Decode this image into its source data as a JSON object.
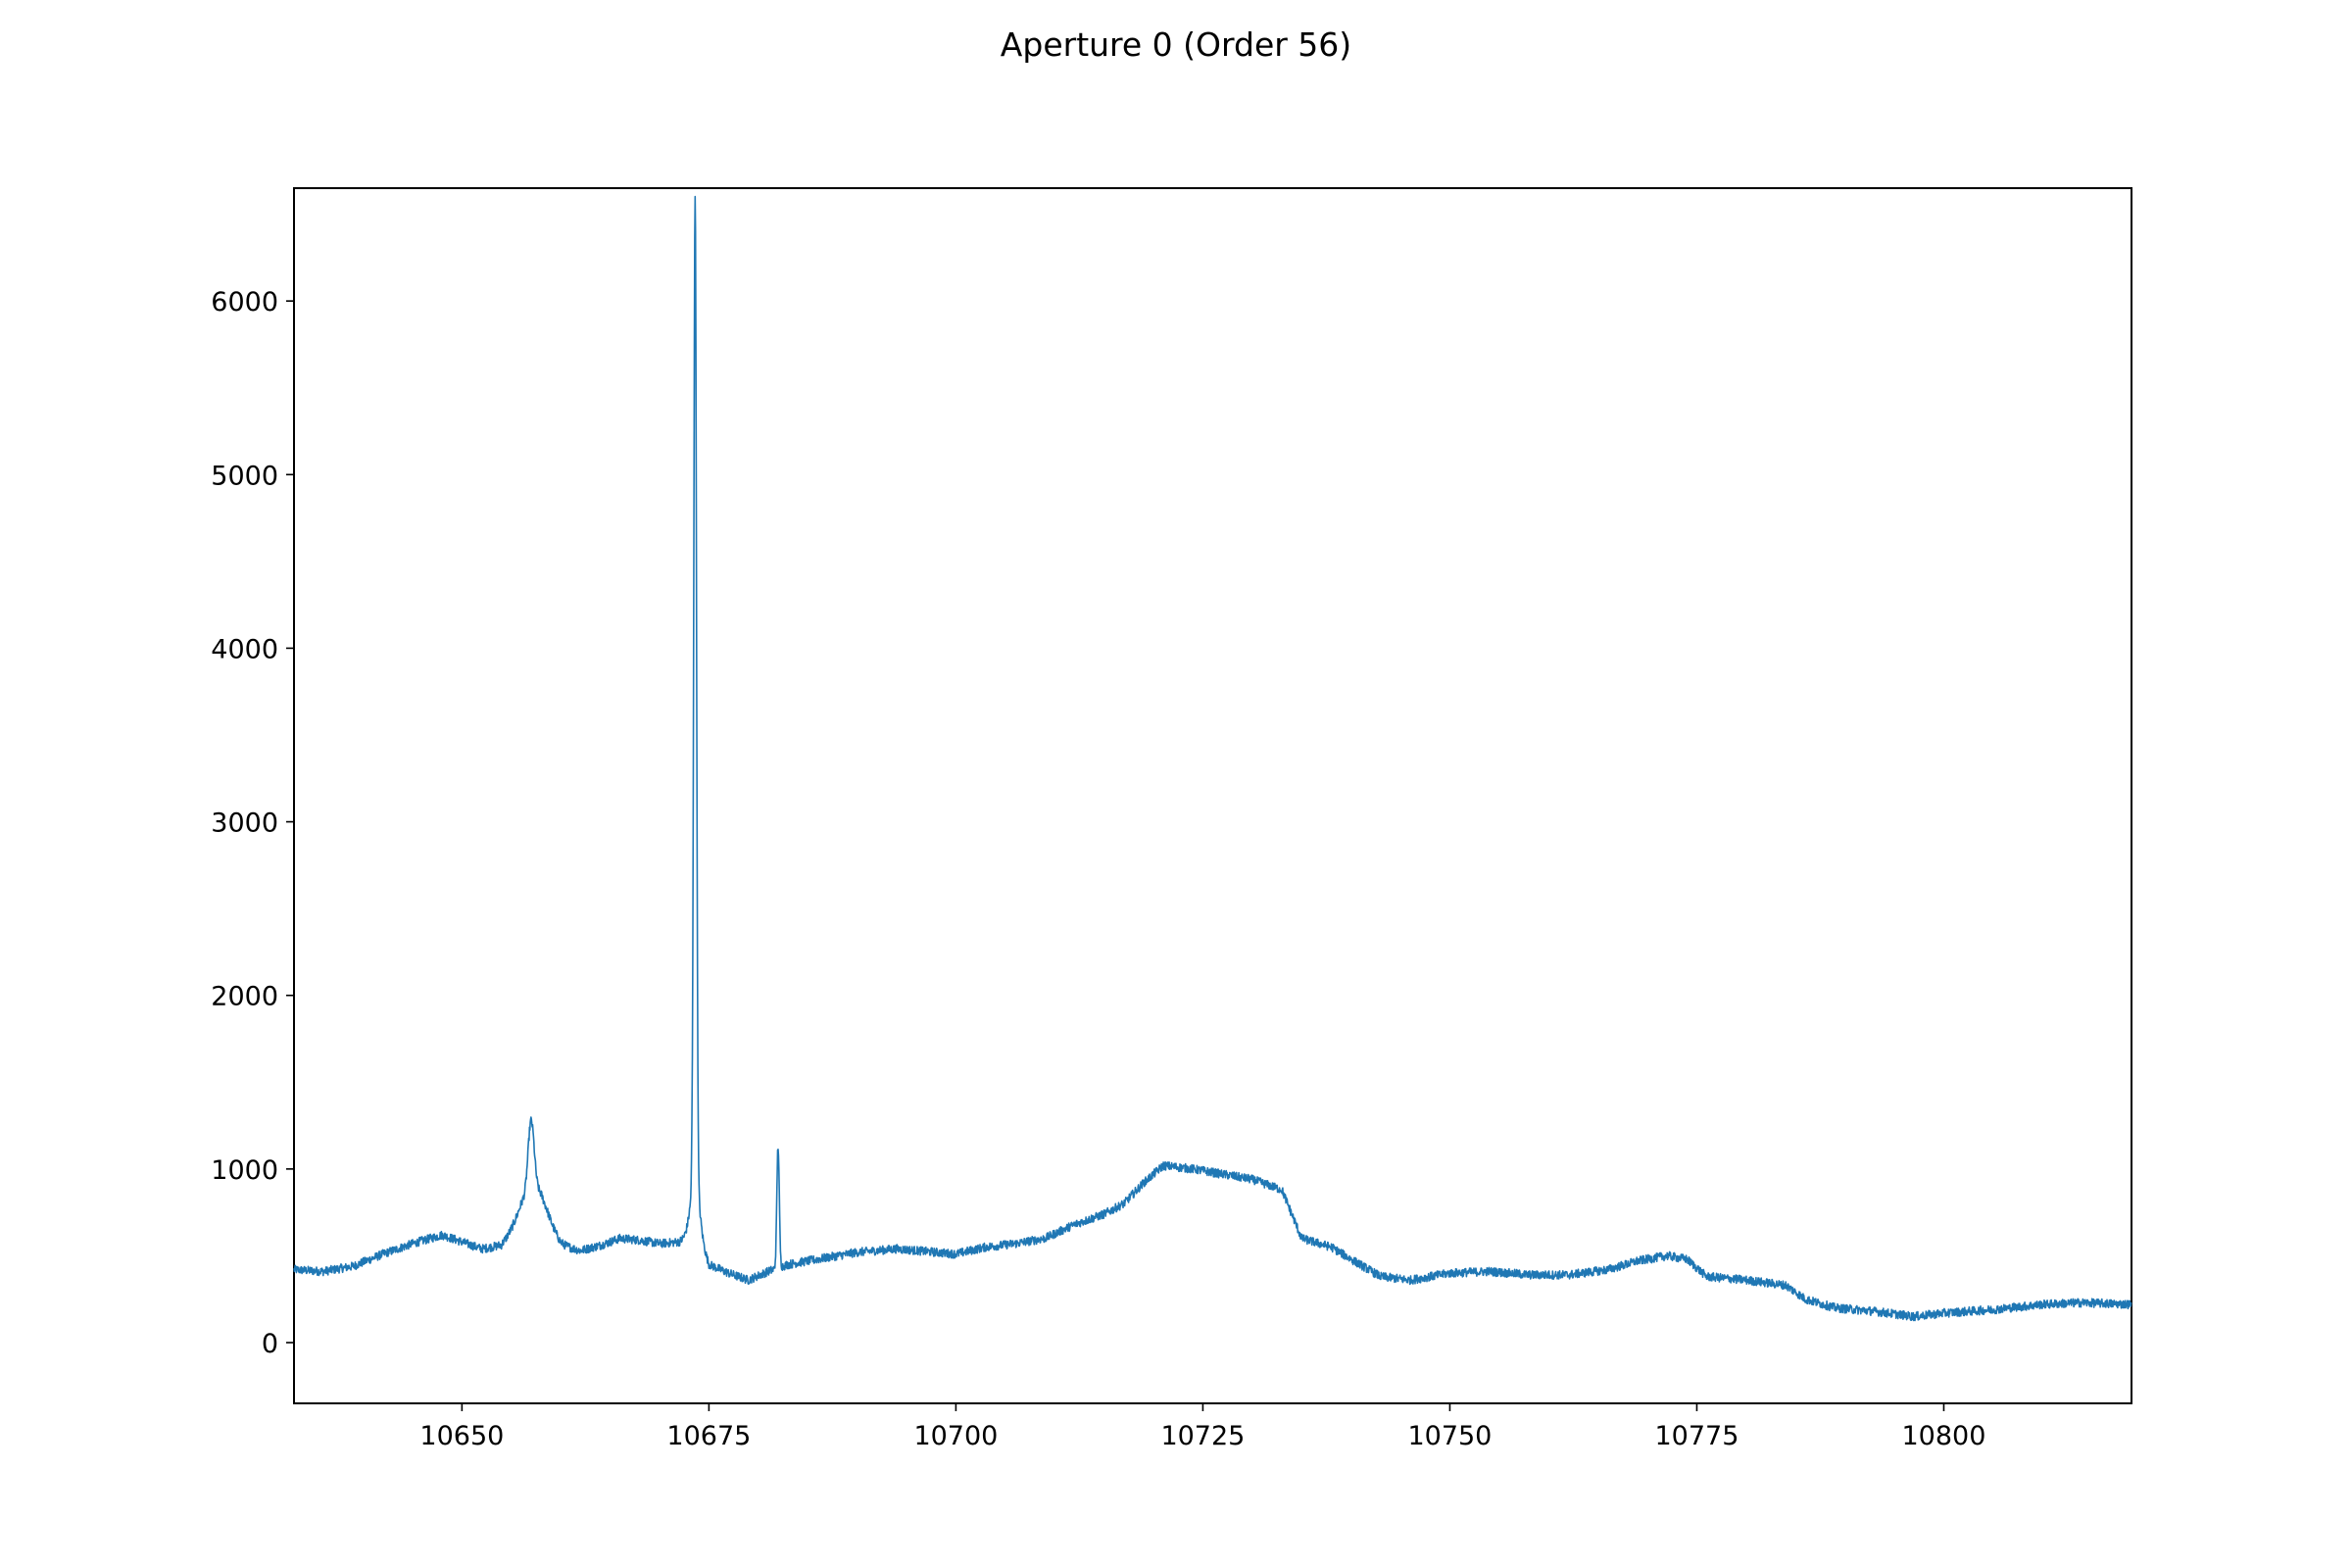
{
  "chart_data": {
    "type": "line",
    "title": "Aperture 0 (Order 56)",
    "xlabel": "",
    "ylabel": "",
    "xlim": [
      10633,
      10819
    ],
    "ylim": [
      -350,
      6650
    ],
    "grid": false,
    "x_ticks": [
      10650,
      10675,
      10700,
      10725,
      10750,
      10775,
      10800
    ],
    "x_tick_labels": [
      "10650",
      "10675",
      "10700",
      "10725",
      "10750",
      "10775",
      "10800"
    ],
    "y_ticks": [
      0,
      1000,
      2000,
      3000,
      4000,
      5000,
      6000
    ],
    "y_tick_labels": [
      "0",
      "1000",
      "2000",
      "3000",
      "4000",
      "5000",
      "6000"
    ],
    "series": [
      {
        "color": "#1f77b4",
        "continuum": [
          [
            10633,
            420
          ],
          [
            10636,
            410
          ],
          [
            10639,
            440
          ],
          [
            10642,
            510
          ],
          [
            10645,
            570
          ],
          [
            10648,
            620
          ],
          [
            10650,
            580
          ],
          [
            10652,
            540
          ],
          [
            10654,
            560
          ],
          [
            10656,
            700
          ],
          [
            10658,
            680
          ],
          [
            10660,
            560
          ],
          [
            10662,
            530
          ],
          [
            10664,
            560
          ],
          [
            10666,
            600
          ],
          [
            10668,
            590
          ],
          [
            10670,
            570
          ],
          [
            10672,
            580
          ],
          [
            10673,
            620
          ],
          [
            10674,
            600
          ],
          [
            10675,
            450
          ],
          [
            10677,
            400
          ],
          [
            10679,
            360
          ],
          [
            10681,
            410
          ],
          [
            10683,
            450
          ],
          [
            10686,
            480
          ],
          [
            10690,
            520
          ],
          [
            10694,
            540
          ],
          [
            10698,
            520
          ],
          [
            10700,
            510
          ],
          [
            10703,
            550
          ],
          [
            10706,
            570
          ],
          [
            10709,
            600
          ],
          [
            10712,
            680
          ],
          [
            10715,
            740
          ],
          [
            10717,
            800
          ],
          [
            10719,
            920
          ],
          [
            10721,
            1020
          ],
          [
            10724,
            1000
          ],
          [
            10727,
            970
          ],
          [
            10730,
            940
          ],
          [
            10733,
            880
          ],
          [
            10735,
            600
          ],
          [
            10738,
            550
          ],
          [
            10740,
            480
          ],
          [
            10743,
            380
          ],
          [
            10746,
            360
          ],
          [
            10750,
            400
          ],
          [
            10754,
            410
          ],
          [
            10758,
            390
          ],
          [
            10762,
            390
          ],
          [
            10766,
            420
          ],
          [
            10769,
            470
          ],
          [
            10772,
            500
          ],
          [
            10774,
            480
          ],
          [
            10776,
            380
          ],
          [
            10780,
            360
          ],
          [
            10784,
            330
          ],
          [
            10786,
            250
          ],
          [
            10789,
            200
          ],
          [
            10793,
            180
          ],
          [
            10797,
            150
          ],
          [
            10800,
            170
          ],
          [
            10805,
            190
          ],
          [
            10810,
            220
          ],
          [
            10814,
            230
          ],
          [
            10819,
            220
          ]
        ],
        "lines": [
          {
            "center": 10657.0,
            "amplitude": 400,
            "width": 0.3
          },
          {
            "center": 10657.4,
            "amplitude": 200,
            "width": 1.2
          },
          {
            "center": 10673.6,
            "amplitude": 5700,
            "width": 0.14
          },
          {
            "center": 10673.6,
            "amplitude": 300,
            "width": 0.45
          },
          {
            "center": 10682.0,
            "amplitude": 700,
            "width": 0.12
          }
        ],
        "noise_amplitude": 25
      }
    ]
  }
}
